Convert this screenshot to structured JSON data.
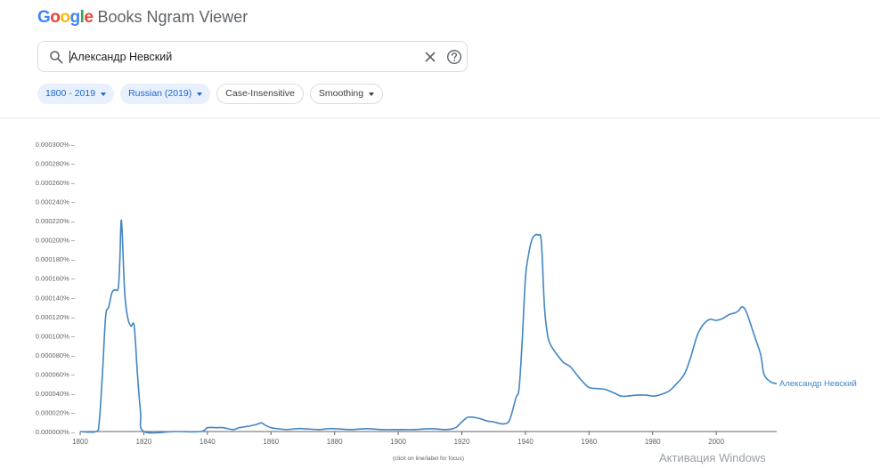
{
  "logo": {
    "google_letters": [
      "G",
      "o",
      "o",
      "g",
      "l",
      "e"
    ],
    "product": "Books Ngram Viewer"
  },
  "search": {
    "value": "Александр Невский",
    "icons": [
      "search-icon",
      "clear-icon",
      "help-icon"
    ]
  },
  "filters": [
    {
      "label": "1800 - 2019",
      "active": true,
      "dropdown": true
    },
    {
      "label": "Russian (2019)",
      "active": true,
      "dropdown": true
    },
    {
      "label": "Case-Insensitive",
      "active": false,
      "dropdown": false
    },
    {
      "label": "Smoothing",
      "active": false,
      "dropdown": true
    }
  ],
  "chart_data": {
    "type": "line",
    "xlim": [
      1800,
      2019
    ],
    "ylim": [
      0,
      0.0003
    ],
    "x_ticks": [
      1800,
      1820,
      1840,
      1860,
      1880,
      1900,
      1920,
      1940,
      1960,
      1980,
      2000
    ],
    "x_tick_labels": [
      "1800",
      "1820",
      "1840",
      "1860",
      "1880",
      "1900",
      "1920",
      "1940",
      "1960",
      "1980",
      "2000"
    ],
    "y_ticks": [
      0,
      2e-05,
      4e-05,
      6e-05,
      8e-05,
      0.0001,
      0.00012,
      0.00014,
      0.00016,
      0.00018,
      0.0002,
      0.00022,
      0.00024,
      0.00026,
      0.00028,
      0.0003
    ],
    "y_tick_labels": [
      "0.000000%",
      "0.000020%",
      "0.000040%",
      "0.000060%",
      "0.000080%",
      "0.000100%",
      "0.000120%",
      "0.000140%",
      "0.000160%",
      "0.000180%",
      "0.000200%",
      "0.000220%",
      "0.000240%",
      "0.000260%",
      "0.000280%",
      "0.000300%"
    ],
    "grid": false,
    "footnote": "(click on line/label for focus)",
    "series": [
      {
        "name": "Александр Невский",
        "color": "#4285c4",
        "x": [
          1800,
          1805,
          1806,
          1807,
          1808,
          1809,
          1810,
          1811,
          1812,
          1812.5,
          1813,
          1814,
          1815,
          1816,
          1817,
          1818,
          1819,
          1820,
          1830,
          1838,
          1840,
          1843,
          1845,
          1848,
          1850,
          1852,
          1855,
          1857,
          1858,
          1860,
          1862,
          1865,
          1868,
          1870,
          1875,
          1878,
          1880,
          1885,
          1890,
          1895,
          1900,
          1905,
          1910,
          1915,
          1918,
          1920,
          1922,
          1925,
          1928,
          1930,
          1933,
          1935,
          1937,
          1938,
          1939,
          1940,
          1941,
          1942,
          1943,
          1944,
          1945,
          1946,
          1947,
          1948,
          1950,
          1952,
          1954,
          1956,
          1958,
          1960,
          1962,
          1965,
          1968,
          1970,
          1972,
          1975,
          1978,
          1980,
          1982,
          1985,
          1987,
          1990,
          1992,
          1994,
          1996,
          1998,
          2000,
          2002,
          2004,
          2006,
          2007,
          2008,
          2009,
          2010,
          2012,
          2014,
          2015,
          2017,
          2019
        ],
        "y": [
          0,
          0,
          1e-05,
          6e-05,
          0.00012,
          0.00013,
          0.000145,
          0.000148,
          0.00015,
          0.00018,
          0.00022,
          0.000145,
          0.000118,
          0.00011,
          0.00011,
          6e-05,
          2e-05,
          0,
          0,
          0,
          4e-06,
          4e-06,
          4e-06,
          2e-06,
          4e-06,
          5e-06,
          7e-06,
          9e-06,
          7e-06,
          4e-06,
          3e-06,
          2e-06,
          3e-06,
          3e-06,
          2e-06,
          3e-06,
          3e-06,
          2e-06,
          3e-06,
          2e-06,
          2e-06,
          2e-06,
          3e-06,
          2e-06,
          4e-06,
          1e-05,
          1.5e-05,
          1.4e-05,
          1.1e-05,
          1e-05,
          8e-06,
          1.2e-05,
          3.5e-05,
          4.5e-05,
          9.5e-05,
          0.00016,
          0.000185,
          0.0002,
          0.000205,
          0.000205,
          0.000198,
          0.00013,
          0.0001,
          9e-05,
          8e-05,
          7.2e-05,
          6.8e-05,
          6e-05,
          5.2e-05,
          4.6e-05,
          4.5e-05,
          4.4e-05,
          4e-05,
          3.7e-05,
          3.7e-05,
          3.8e-05,
          3.8e-05,
          3.7e-05,
          3.8e-05,
          4.2e-05,
          4.8e-05,
          6e-05,
          7.8e-05,
          0.0001,
          0.000112,
          0.000117,
          0.000116,
          0.000118,
          0.000122,
          0.000124,
          0.000126,
          0.00013,
          0.000128,
          0.00012,
          0.0001,
          8e-05,
          6e-05,
          5.2e-05,
          5e-05
        ]
      }
    ]
  },
  "watermark": "Активация Windows"
}
